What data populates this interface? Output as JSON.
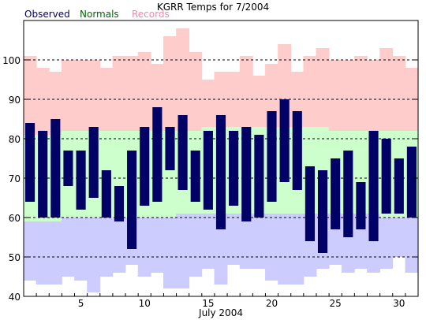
{
  "chart_data": {
    "type": "bar",
    "title": "KGRR Temps for 7/2004",
    "xlabel": "July 2004",
    "ylabel": "",
    "ylim": [
      40,
      110
    ],
    "grid": true,
    "legend": {
      "placement": "top-left",
      "entries": [
        {
          "label": "Observed",
          "color": "#000066"
        },
        {
          "label": "Normals",
          "color": "#006600"
        },
        {
          "label": "Records",
          "color": "#ee88aa"
        }
      ]
    },
    "colors": {
      "observed": "#000066",
      "normals": "#ccffcc",
      "records": "#ffcccc",
      "record_low": "#ccccff",
      "grid": "#000000"
    },
    "y_ticks": [
      40,
      50,
      60,
      70,
      80,
      90,
      100
    ],
    "x_ticks": [
      5,
      10,
      15,
      20,
      25,
      30
    ],
    "days": [
      1,
      2,
      3,
      4,
      5,
      6,
      7,
      8,
      9,
      10,
      11,
      12,
      13,
      14,
      15,
      16,
      17,
      18,
      19,
      20,
      21,
      22,
      23,
      24,
      25,
      26,
      27,
      28,
      29,
      30,
      31
    ],
    "observed": [
      {
        "high": 84,
        "low": 64
      },
      {
        "high": 82,
        "low": 60
      },
      {
        "high": 85,
        "low": 60
      },
      {
        "high": 77,
        "low": 68
      },
      {
        "high": 77,
        "low": 62
      },
      {
        "high": 83,
        "low": 65
      },
      {
        "high": 72,
        "low": 60
      },
      {
        "high": 68,
        "low": 59
      },
      {
        "high": 77,
        "low": 52
      },
      {
        "high": 83,
        "low": 63
      },
      {
        "high": 88,
        "low": 64
      },
      {
        "high": 83,
        "low": 72
      },
      {
        "high": 86,
        "low": 67
      },
      {
        "high": 77,
        "low": 64
      },
      {
        "high": 82,
        "low": 62
      },
      {
        "high": 86,
        "low": 57
      },
      {
        "high": 82,
        "low": 63
      },
      {
        "high": 83,
        "low": 59
      },
      {
        "high": 81,
        "low": 60
      },
      {
        "high": 87,
        "low": 64
      },
      {
        "high": 90,
        "low": 69
      },
      {
        "high": 87,
        "low": 67
      },
      {
        "high": 73,
        "low": 54
      },
      {
        "high": 72,
        "low": 51
      },
      {
        "high": 75,
        "low": 57
      },
      {
        "high": 77,
        "low": 55
      },
      {
        "high": 69,
        "low": 57
      },
      {
        "high": 82,
        "low": 54
      },
      {
        "high": 80,
        "low": 61
      },
      {
        "high": 75,
        "low": 61
      },
      {
        "high": 78,
        "low": 60
      }
    ],
    "normals": [
      {
        "high": 81,
        "low": 59
      },
      {
        "high": 81,
        "low": 59
      },
      {
        "high": 81,
        "low": 59
      },
      {
        "high": 82,
        "low": 60
      },
      {
        "high": 82,
        "low": 60
      },
      {
        "high": 82,
        "low": 60
      },
      {
        "high": 82,
        "low": 60
      },
      {
        "high": 82,
        "low": 60
      },
      {
        "high": 82,
        "low": 60
      },
      {
        "high": 82,
        "low": 60
      },
      {
        "high": 82,
        "low": 60
      },
      {
        "high": 82,
        "low": 60
      },
      {
        "high": 82,
        "low": 61
      },
      {
        "high": 82,
        "low": 61
      },
      {
        "high": 83,
        "low": 61
      },
      {
        "high": 83,
        "low": 61
      },
      {
        "high": 83,
        "low": 61
      },
      {
        "high": 83,
        "low": 61
      },
      {
        "high": 83,
        "low": 61
      },
      {
        "high": 83,
        "low": 61
      },
      {
        "high": 83,
        "low": 61
      },
      {
        "high": 83,
        "low": 61
      },
      {
        "high": 83,
        "low": 61
      },
      {
        "high": 83,
        "low": 61
      },
      {
        "high": 82,
        "low": 61
      },
      {
        "high": 82,
        "low": 61
      },
      {
        "high": 82,
        "low": 61
      },
      {
        "high": 82,
        "low": 61
      },
      {
        "high": 82,
        "low": 60
      },
      {
        "high": 82,
        "low": 60
      },
      {
        "high": 82,
        "low": 60
      }
    ],
    "records": [
      {
        "high": 101,
        "low": 44
      },
      {
        "high": 98,
        "low": 43
      },
      {
        "high": 97,
        "low": 43
      },
      {
        "high": 100,
        "low": 45
      },
      {
        "high": 100,
        "low": 44
      },
      {
        "high": 100,
        "low": 41
      },
      {
        "high": 98,
        "low": 45
      },
      {
        "high": 101,
        "low": 46
      },
      {
        "high": 101,
        "low": 48
      },
      {
        "high": 102,
        "low": 45
      },
      {
        "high": 99,
        "low": 46
      },
      {
        "high": 106,
        "low": 42
      },
      {
        "high": 108,
        "low": 42
      },
      {
        "high": 102,
        "low": 45
      },
      {
        "high": 95,
        "low": 47
      },
      {
        "high": 97,
        "low": 43
      },
      {
        "high": 97,
        "low": 48
      },
      {
        "high": 101,
        "low": 47
      },
      {
        "high": 96,
        "low": 47
      },
      {
        "high": 99,
        "low": 44
      },
      {
        "high": 104,
        "low": 43
      },
      {
        "high": 97,
        "low": 43
      },
      {
        "high": 101,
        "low": 45
      },
      {
        "high": 103,
        "low": 47
      },
      {
        "high": 100,
        "low": 48
      },
      {
        "high": 100,
        "low": 46
      },
      {
        "high": 101,
        "low": 47
      },
      {
        "high": 100,
        "low": 46
      },
      {
        "high": 103,
        "low": 47
      },
      {
        "high": 101,
        "low": 50
      },
      {
        "high": 98,
        "low": 46
      }
    ]
  }
}
